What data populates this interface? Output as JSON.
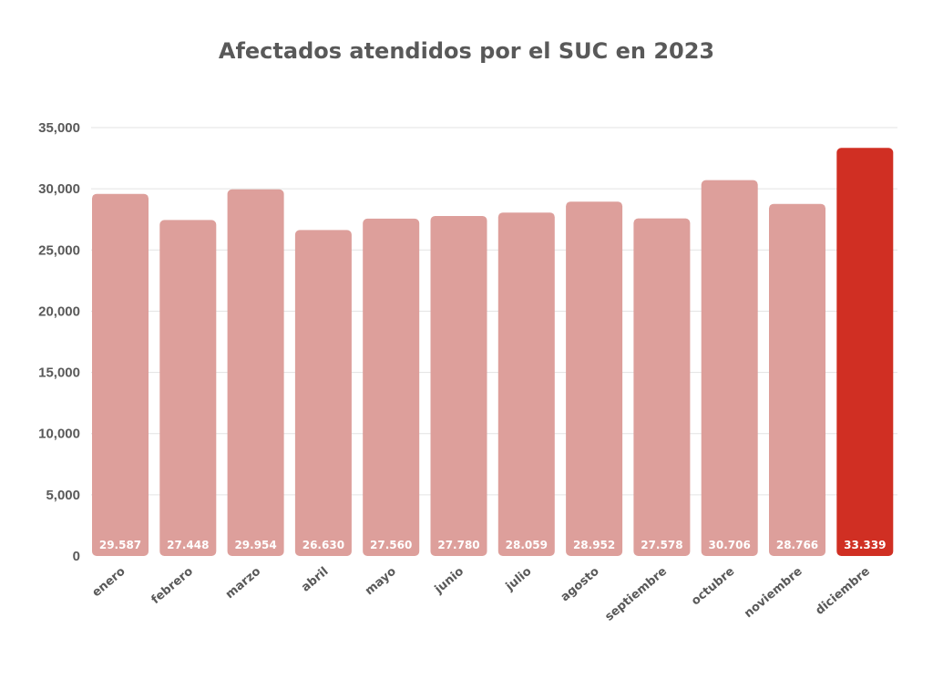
{
  "chart_data": {
    "type": "bar",
    "title": "Afectados atendidos por el SUC en 2023",
    "xlabel": "",
    "ylabel": "",
    "categories": [
      "enero",
      "febrero",
      "marzo",
      "abril",
      "mayo",
      "junio",
      "julio",
      "agosto",
      "septiembre",
      "octubre",
      "noviembre",
      "diciembre"
    ],
    "values": [
      29587,
      27448,
      29954,
      26630,
      27560,
      27780,
      28059,
      28952,
      27578,
      30706,
      28766,
      33339
    ],
    "data_labels": [
      "29.587",
      "27.448",
      "29.954",
      "26.630",
      "27.560",
      "27.780",
      "28.059",
      "28.952",
      "27.578",
      "30.706",
      "28.766",
      "33.339"
    ],
    "ylim": [
      0,
      35000
    ],
    "yticks": [
      0,
      5000,
      10000,
      15000,
      20000,
      25000,
      30000,
      35000
    ],
    "ytick_labels": [
      "0",
      "5,000",
      "10,000",
      "15,000",
      "20,000",
      "25,000",
      "30,000",
      "35,000"
    ],
    "grid": true,
    "legend": "none",
    "colors": {
      "bar": "#dd9f9b",
      "highlight": "#d02f23",
      "grid": "#e3e3e3",
      "text": "#595959"
    },
    "highlight_category": "diciembre"
  }
}
